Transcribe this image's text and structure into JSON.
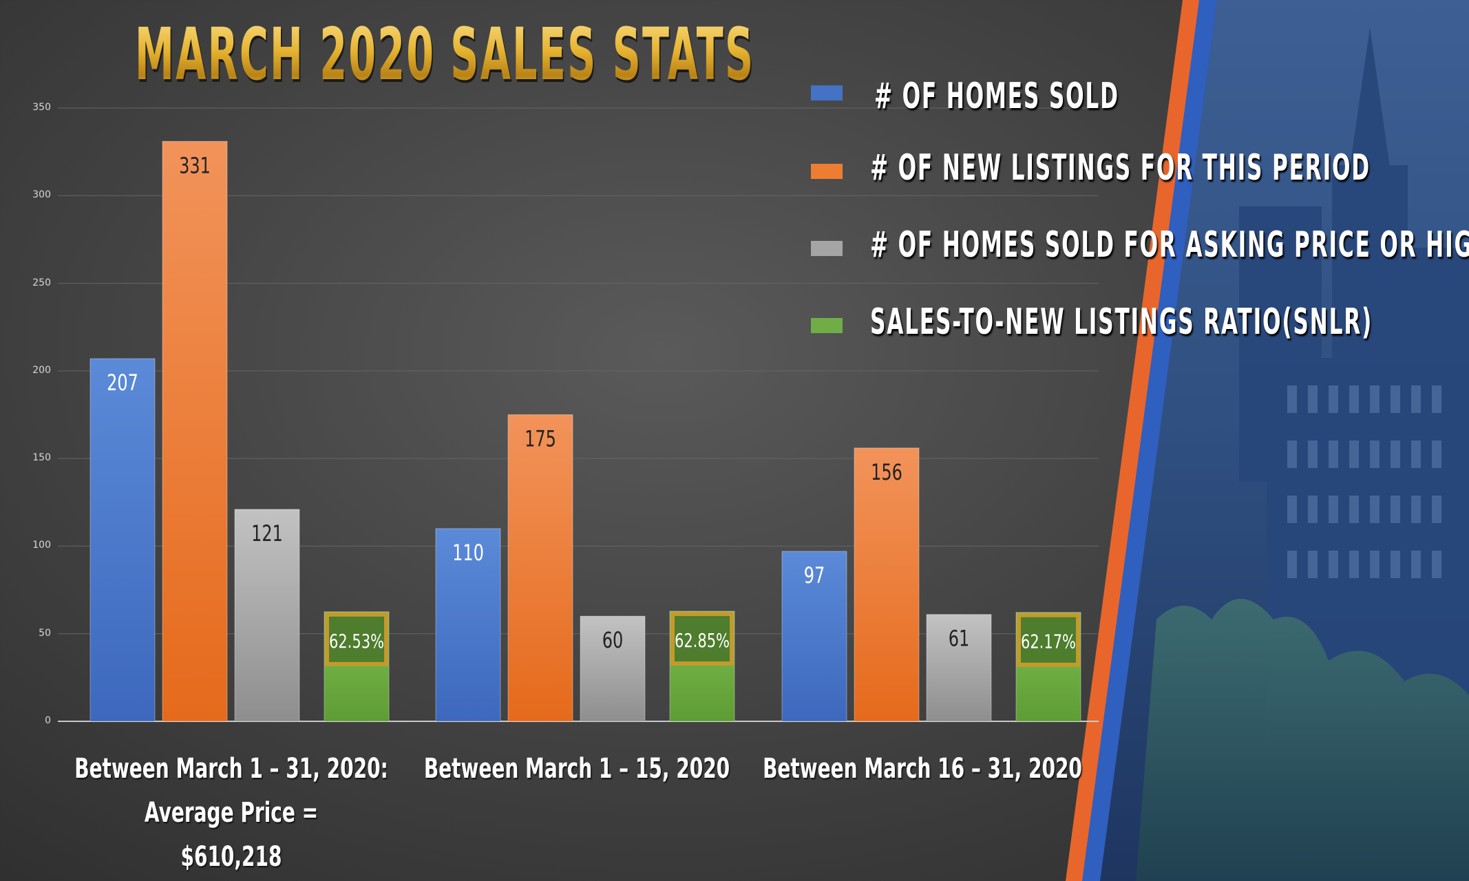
{
  "title": "MARCH 2020 SALES STATS",
  "chart_data": {
    "type": "bar",
    "categories": [
      "Between March 1 – 31, 2020: Average Price = $610,218",
      "Between March 1 – 15, 2020",
      "Between March 16 – 31, 2020"
    ],
    "category_lines": [
      [
        "Between March 1 – 31, 2020: Average Price =",
        "$610,218"
      ],
      [
        "Between March 1 – 15, 2020"
      ],
      [
        "Between March 16 – 31, 2020"
      ]
    ],
    "ylim": [
      0,
      350
    ],
    "yticks": [
      0,
      50,
      100,
      150,
      200,
      250,
      300,
      350
    ],
    "grid": true,
    "legend_position": "top-right",
    "series": [
      {
        "name": "# OF HOMES SOLD",
        "color": "#4472c4",
        "values": [
          207,
          110,
          97
        ],
        "labels": [
          "207",
          "110",
          "97"
        ]
      },
      {
        "name": "# OF NEW LISTINGS FOR THIS PERIOD",
        "color": "#ed7d31",
        "values": [
          331,
          175,
          156
        ],
        "labels": [
          "331",
          "175",
          "156"
        ]
      },
      {
        "name": "# OF HOMES SOLD FOR ASKING PRICE OR HIGHER",
        "color": "#a5a5a5",
        "values": [
          121,
          60,
          61
        ],
        "labels": [
          "121",
          "60",
          "61"
        ]
      },
      {
        "name": "SALES-TO-NEW LISTINGS RATIO(SNLR)",
        "color": "#70ad47",
        "values": [
          62.53,
          62.85,
          62.17
        ],
        "labels": [
          "62.53%",
          "62.85%",
          "62.17%"
        ]
      }
    ]
  }
}
